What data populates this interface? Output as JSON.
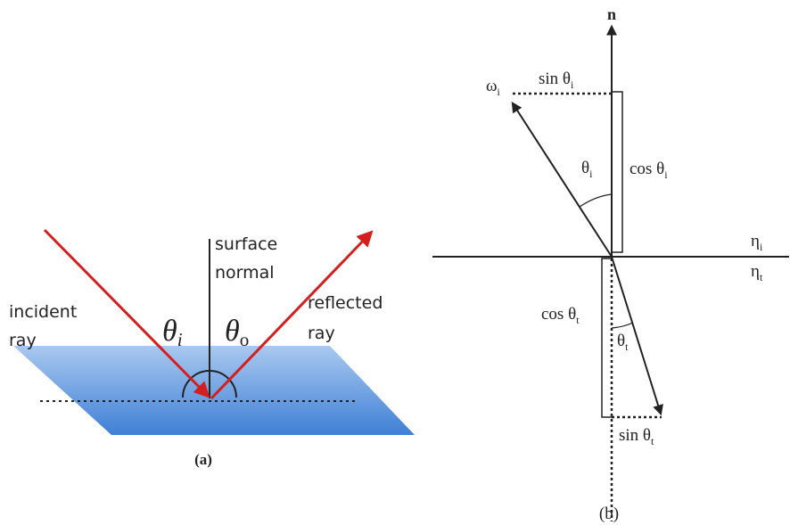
{
  "panel_a": {
    "normal": [
      "surface",
      "normal"
    ],
    "incident": [
      "incident",
      "ray"
    ],
    "reflected": [
      "reflected",
      "ray"
    ],
    "theta_i": {
      "text": "θ",
      "sub": "i"
    },
    "theta_o": {
      "text": "θ",
      "sub": "o"
    },
    "caption": "(a)"
  },
  "panel_b": {
    "normal": "n",
    "omega_i": {
      "text": "ω",
      "sub": "i"
    },
    "sin_i": {
      "text": "sin θ",
      "sub": "i"
    },
    "cos_i": {
      "text": "cos θ",
      "sub": "i"
    },
    "theta_i": {
      "text": "θ",
      "sub": "i"
    },
    "eta_i": {
      "text": "η",
      "sub": "i"
    },
    "eta_t": {
      "text": "η",
      "sub": "t"
    },
    "cos_t": {
      "text": "cos θ",
      "sub": "t"
    },
    "theta_t": {
      "text": "θ",
      "sub": "t"
    },
    "sin_t": {
      "text": "sin θ",
      "sub": "t"
    },
    "caption": "(b)"
  }
}
